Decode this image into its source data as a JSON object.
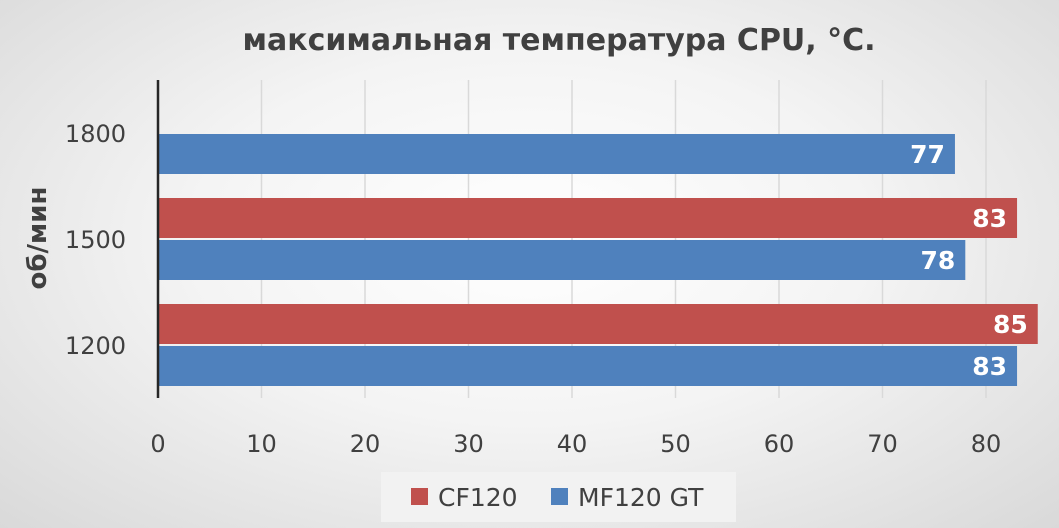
{
  "chart_data": {
    "type": "bar",
    "orientation": "horizontal",
    "title": "максимальная температура CPU, °C.",
    "xlabel": "",
    "ylabel": "об/мин",
    "categories": [
      "1200",
      "1500",
      "1800"
    ],
    "series": [
      {
        "name": "CF120",
        "color": "#C0504D",
        "values": [
          85,
          83,
          null
        ],
        "labels": [
          "85",
          "83",
          ""
        ]
      },
      {
        "name": "MF120 GT",
        "color": "#4F81BD",
        "values": [
          83,
          78,
          77
        ],
        "labels": [
          "83",
          "78",
          "77"
        ]
      }
    ],
    "xlim": [
      0,
      85
    ],
    "xticks": [
      0,
      10,
      20,
      30,
      40,
      50,
      60,
      70,
      80
    ],
    "xtick_labels": [
      "0",
      "10",
      "20",
      "30",
      "40",
      "50",
      "60",
      "70",
      "80"
    ],
    "grid": true,
    "legend": "bottom"
  }
}
